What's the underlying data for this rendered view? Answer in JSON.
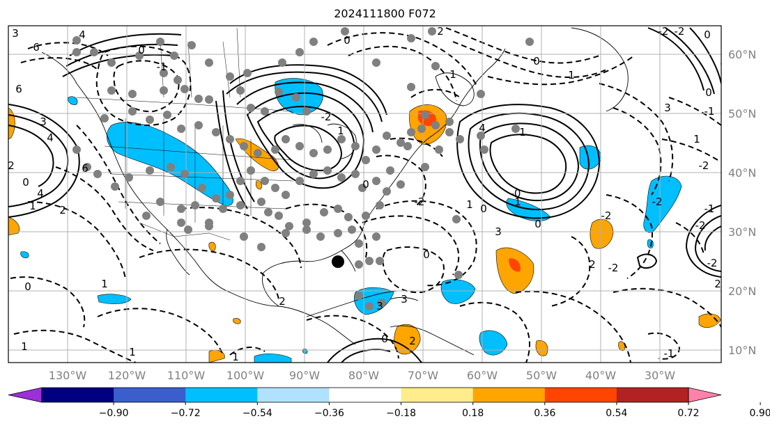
{
  "title": "2024111800 F072",
  "lon_labels": [
    "130°W",
    "120°W",
    "110°W",
    "100°W",
    "90°W",
    "80°W",
    "70°W",
    "60°W",
    "50°W",
    "40°W",
    "30°W"
  ],
  "lat_labels": [
    "60°N",
    "50°N",
    "40°N",
    "30°N",
    "20°N",
    "10°N"
  ],
  "colorbar": {
    "ticks": [
      "−0.90",
      "−0.72",
      "−0.54",
      "−0.36",
      "−0.18",
      "0.18",
      "0.36",
      "0.54",
      "0.72",
      "0.90"
    ],
    "colors": [
      "#9b30d9",
      "#000080",
      "#3a5fcd",
      "#00bfff",
      "#b0e2ff",
      "#ffffff",
      "#ffec8b",
      "#ffa500",
      "#ff4500",
      "#b22222",
      "#ff82ab"
    ]
  },
  "contour_labels": [
    "4",
    "6",
    "3",
    "0",
    "-1",
    "6",
    "3",
    "4",
    "2",
    "0",
    "4",
    "1",
    "6",
    "2",
    "0",
    "-2",
    "1",
    "0",
    "2",
    "1",
    "-2",
    "1",
    "0",
    "3",
    "4",
    "1",
    "0",
    "1",
    "3",
    "1",
    "-2",
    "-2",
    "-2",
    "2",
    "-2",
    "-1",
    "-2",
    "-2",
    "2",
    "0",
    "3",
    "3",
    "2",
    "1",
    "0",
    "1",
    "1",
    "1",
    "0",
    "2",
    "-1",
    "0",
    "-2",
    "-2",
    "0",
    "0",
    "-1",
    "-0",
    "0",
    "1"
  ],
  "marker_colors": {
    "station": "#808080",
    "storm": "#000000"
  }
}
